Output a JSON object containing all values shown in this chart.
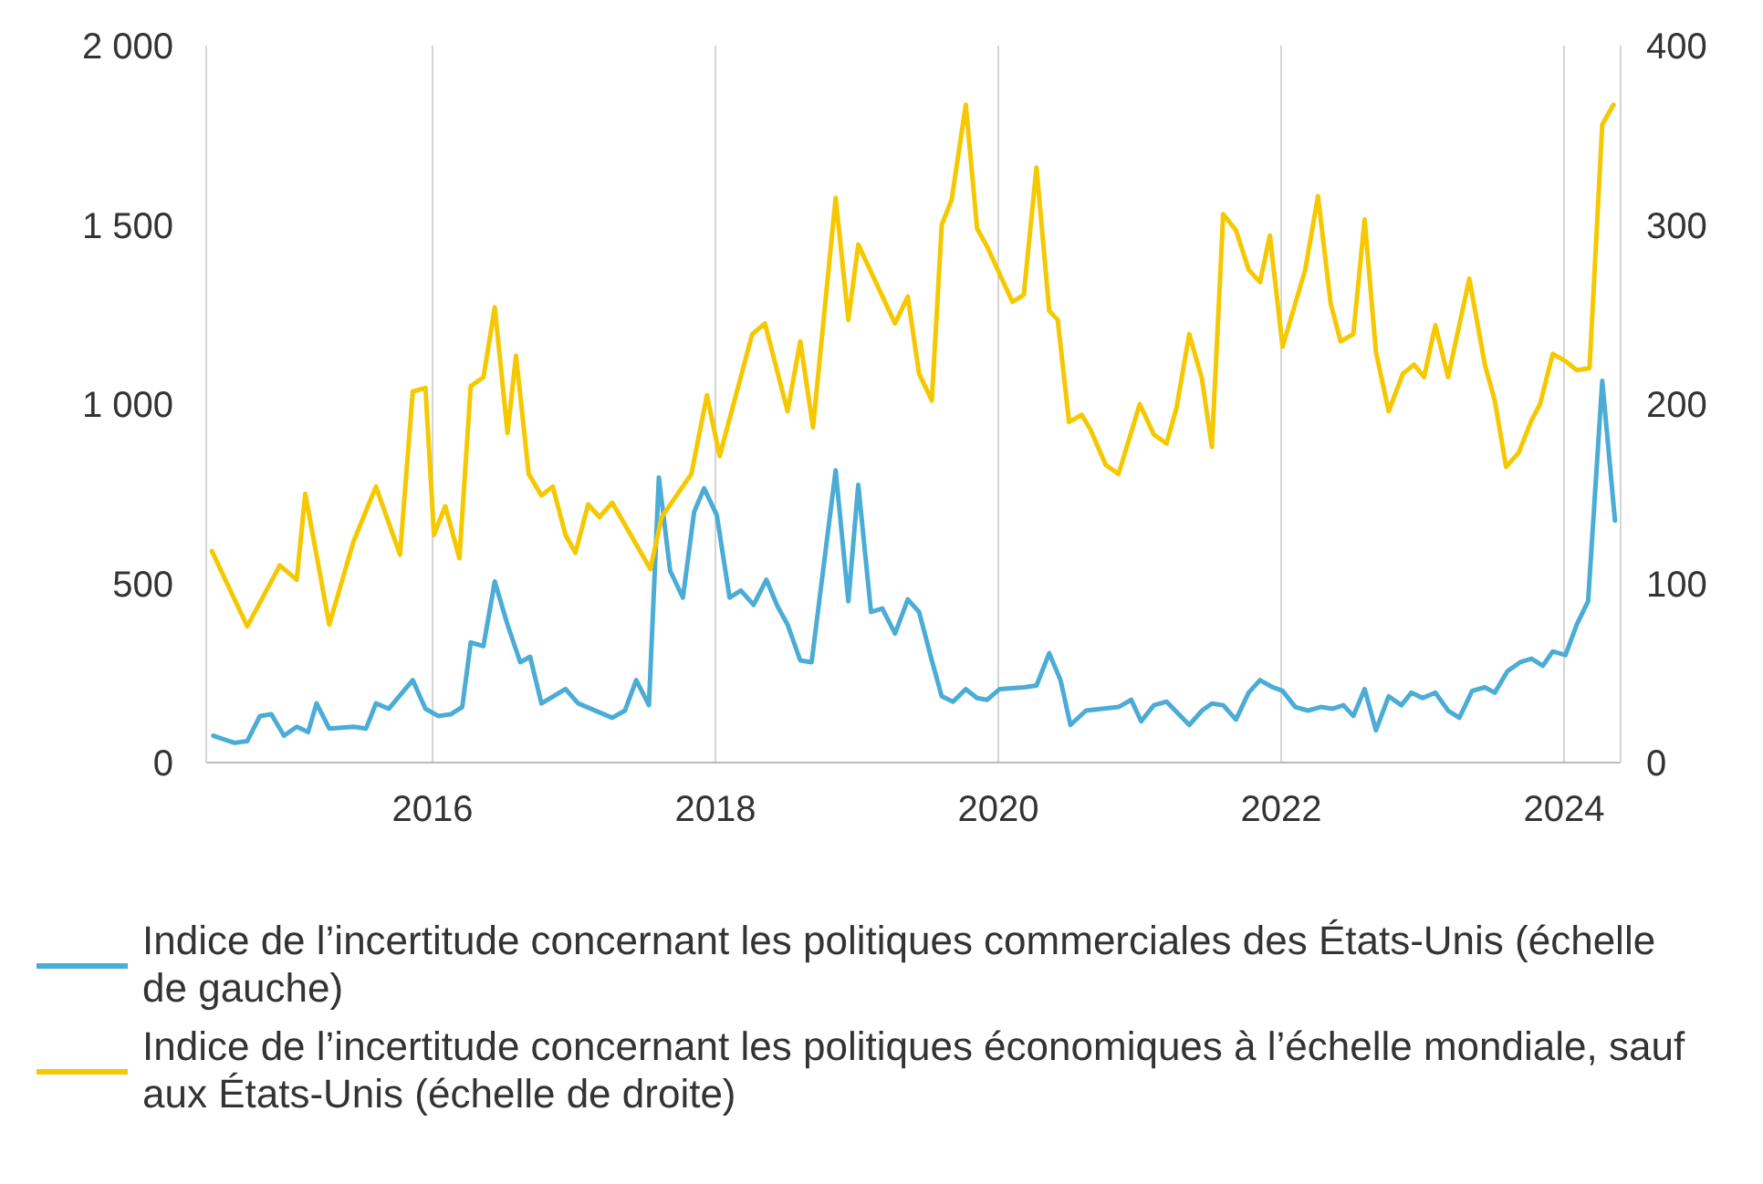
{
  "chart_data": {
    "type": "line",
    "xlim": [
      2014.4,
      2024.4
    ],
    "xticks": [
      2016,
      2018,
      2020,
      2022,
      2024
    ],
    "ylim": [
      0,
      2000
    ],
    "yticks": [
      0,
      500,
      {
        "value": 1000,
        "label": "1 000"
      },
      {
        "value": 1500,
        "label": "1 500"
      },
      {
        "value": 2000,
        "label": "2 000"
      }
    ],
    "y2lim": [
      0,
      400
    ],
    "y2ticks": [
      0,
      100,
      200,
      300,
      400
    ],
    "grid": true,
    "legend": "bottom",
    "marker": "none",
    "line_style": "solid",
    "series": [
      {
        "name": "Indice de l’incertitude concernant les politiques commerciales des États-Unis (échelle de gauche)",
        "color": "#4bacd6",
        "axis": "y",
        "x": [
          2014.45,
          2014.6,
          2014.69,
          2014.78,
          2014.86,
          2014.95,
          2015.04,
          2015.12,
          2015.18,
          2015.27,
          2015.44,
          2015.53,
          2015.6,
          2015.69,
          2015.86,
          2015.95,
          2016.04,
          2016.13,
          2016.21,
          2016.27,
          2016.36,
          2016.44,
          2016.53,
          2016.62,
          2016.69,
          2016.77,
          2016.94,
          2017.03,
          2017.27,
          2017.36,
          2017.44,
          2017.53,
          2017.6,
          2017.68,
          2017.77,
          2017.85,
          2017.92,
          2018.01,
          2018.1,
          2018.18,
          2018.27,
          2018.36,
          2018.44,
          2018.51,
          2018.6,
          2018.68,
          2018.85,
          2018.94,
          2019.01,
          2019.1,
          2019.18,
          2019.27,
          2019.36,
          2019.44,
          2019.53,
          2019.6,
          2019.68,
          2019.77,
          2019.85,
          2019.92,
          2020.01,
          2020.18,
          2020.27,
          2020.36,
          2020.44,
          2020.51,
          2020.62,
          2020.85,
          2020.94,
          2021.01,
          2021.1,
          2021.19,
          2021.35,
          2021.44,
          2021.51,
          2021.59,
          2021.68,
          2021.77,
          2021.85,
          2021.94,
          2022.01,
          2022.1,
          2022.19,
          2022.28,
          2022.36,
          2022.44,
          2022.51,
          2022.59,
          2022.67,
          2022.76,
          2022.85,
          2022.92,
          2023.0,
          2023.09,
          2023.18,
          2023.26,
          2023.35,
          2023.44,
          2023.51,
          2023.6,
          2023.69,
          2023.77,
          2023.85,
          2023.92,
          2024.01,
          2024.09,
          2024.17,
          2024.27,
          2024.36
        ],
        "values": [
          75,
          55,
          60,
          130,
          135,
          75,
          100,
          85,
          165,
          95,
          100,
          95,
          165,
          150,
          230,
          150,
          130,
          135,
          155,
          335,
          325,
          505,
          385,
          280,
          295,
          165,
          205,
          165,
          125,
          145,
          230,
          160,
          795,
          535,
          460,
          700,
          765,
          690,
          460,
          480,
          440,
          510,
          435,
          385,
          285,
          280,
          815,
          450,
          775,
          420,
          430,
          360,
          455,
          420,
          285,
          185,
          170,
          205,
          180,
          175,
          205,
          210,
          215,
          305,
          230,
          105,
          145,
          155,
          175,
          115,
          160,
          170,
          105,
          145,
          165,
          160,
          120,
          195,
          230,
          210,
          200,
          155,
          145,
          155,
          150,
          160,
          130,
          205,
          90,
          185,
          160,
          195,
          180,
          195,
          145,
          125,
          200,
          210,
          195,
          255,
          280,
          290,
          270,
          310,
          300,
          385,
          450,
          1065,
          675
        ]
      },
      {
        "name": "Indice de l’incertitude concernant les politiques économiques à l’échelle mondiale, sauf aux États-Unis (échelle de droite)",
        "color": "#f5c800",
        "axis": "y2",
        "x": [
          2014.44,
          2014.69,
          2014.92,
          2015.04,
          2015.1,
          2015.27,
          2015.44,
          2015.6,
          2015.77,
          2015.86,
          2015.95,
          2016.01,
          2016.09,
          2016.19,
          2016.27,
          2016.36,
          2016.44,
          2016.53,
          2016.59,
          2016.68,
          2016.77,
          2016.85,
          2016.94,
          2017.01,
          2017.1,
          2017.18,
          2017.27,
          2017.54,
          2017.62,
          2017.83,
          2017.94,
          2018.03,
          2018.26,
          2018.35,
          2018.51,
          2018.6,
          2018.69,
          2018.85,
          2018.94,
          2019.01,
          2019.27,
          2019.36,
          2019.44,
          2019.53,
          2019.6,
          2019.67,
          2019.77,
          2019.85,
          2019.92,
          2020.1,
          2020.18,
          2020.27,
          2020.36,
          2020.42,
          2020.5,
          2020.59,
          2020.65,
          2020.76,
          2020.85,
          2021.0,
          2021.1,
          2021.19,
          2021.26,
          2021.35,
          2021.44,
          2021.51,
          2021.59,
          2021.68,
          2021.77,
          2021.85,
          2021.92,
          2022.01,
          2022.17,
          2022.26,
          2022.35,
          2022.42,
          2022.51,
          2022.59,
          2022.67,
          2022.76,
          2022.86,
          2022.94,
          2023.01,
          2023.09,
          2023.18,
          2023.33,
          2023.44,
          2023.51,
          2023.59,
          2023.68,
          2023.77,
          2023.83,
          2023.92,
          2024.01,
          2024.09,
          2024.18,
          2024.27,
          2024.35
        ],
        "values": [
          118,
          76,
          110,
          102,
          150,
          77,
          123,
          154,
          116,
          207,
          209,
          127,
          143,
          114,
          210,
          215,
          254,
          184,
          227,
          161,
          149,
          154,
          127,
          117,
          144,
          137,
          145,
          108,
          137,
          161,
          205,
          171,
          239,
          245,
          196,
          235,
          187,
          315,
          247,
          289,
          245,
          260,
          217,
          202,
          300,
          314,
          367,
          298,
          288,
          257,
          261,
          332,
          252,
          247,
          190,
          194,
          186,
          166,
          161,
          200,
          183,
          178,
          198,
          239,
          214,
          176,
          306,
          297,
          275,
          268,
          294,
          232,
          275,
          316,
          256,
          235,
          239,
          303,
          229,
          196,
          217,
          222,
          215,
          244,
          215,
          270,
          222,
          202,
          165,
          173,
          191,
          200,
          228,
          224,
          219,
          220,
          356,
          367
        ]
      }
    ]
  }
}
